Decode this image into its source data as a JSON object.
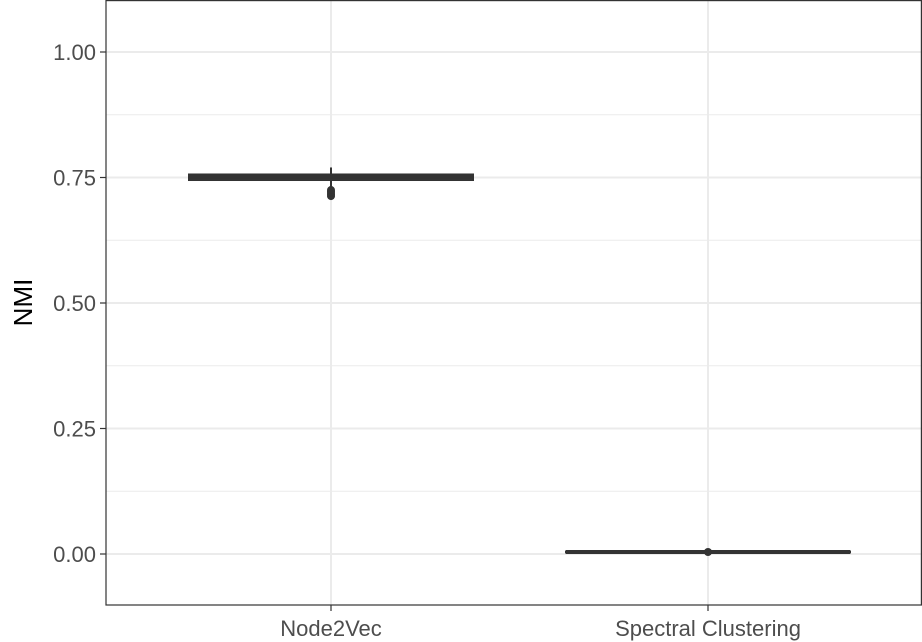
{
  "chart_data": {
    "type": "box",
    "title": "",
    "xlabel": "",
    "ylabel": "NMI",
    "ylim": [
      -0.1,
      1.1
    ],
    "y_ticks": [
      "0.00",
      "0.25",
      "0.50",
      "0.75",
      "1.00"
    ],
    "grid": true,
    "categories": [
      "Node2Vec",
      "Spectral Clustering"
    ],
    "boxes": [
      {
        "category": "Node2Vec",
        "min": 0.73,
        "q1": 0.745,
        "median": 0.751,
        "q3": 0.756,
        "max": 0.77,
        "outliers": [
          0.713,
          0.716,
          0.719,
          0.722,
          0.725
        ]
      },
      {
        "category": "Spectral Clustering",
        "min": 0.003,
        "q1": 0.004,
        "median": 0.004,
        "q3": 0.005,
        "max": 0.006,
        "outliers": [
          0.004
        ]
      }
    ],
    "colors": {
      "box": "#333333",
      "fill": "#ffffff",
      "grid": "#ebebeb",
      "panel_border": "#333333"
    }
  }
}
